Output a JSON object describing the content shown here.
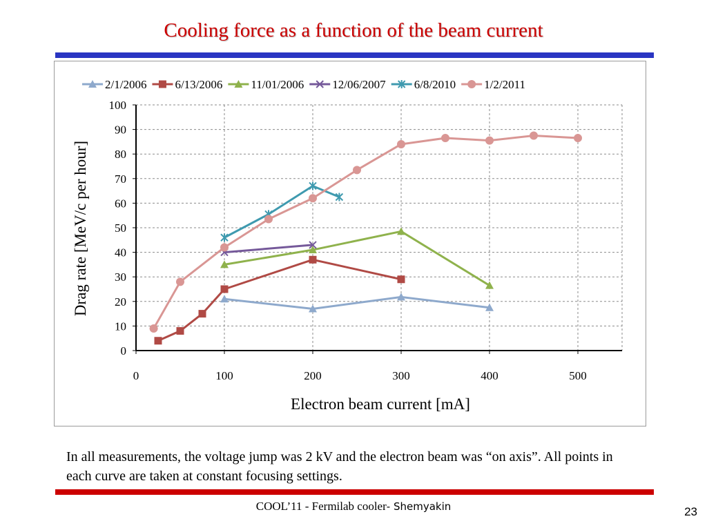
{
  "slide": {
    "title": "Cooling force as a function of the beam current",
    "note": "In all measurements, the voltage jump was 2 kV and the electron beam was “on axis”. All points in each curve are taken at constant focusing settings.",
    "footer_main": "COOL’11 - Fermilab cooler",
    "footer_author": "- Shemyakin",
    "page_number": "23"
  },
  "chart_data": {
    "type": "line",
    "title": "",
    "xlabel": "Electron beam current [mA]",
    "ylabel": "Drag rate [MeV/c per hour]",
    "xlim": [
      0,
      550
    ],
    "ylim": [
      0,
      100
    ],
    "xticks": [
      0,
      100,
      200,
      300,
      400,
      500
    ],
    "yticks": [
      0,
      10,
      20,
      30,
      40,
      50,
      60,
      70,
      80,
      90,
      100
    ],
    "grid": "dashed",
    "legend_position": "top",
    "series": [
      {
        "name": "2/1/2006",
        "color": "#8ea9cc",
        "marker": "triangle",
        "x": [
          100,
          200,
          300,
          400
        ],
        "y": [
          21,
          17,
          21.8,
          17.5
        ]
      },
      {
        "name": "6/13/2006",
        "color": "#b04a45",
        "marker": "square",
        "x": [
          25,
          50,
          75,
          100,
          200,
          300
        ],
        "y": [
          4,
          8,
          15,
          25,
          37,
          29
        ]
      },
      {
        "name": "11/01/2006",
        "color": "#8fb24c",
        "marker": "triangle",
        "x": [
          100,
          200,
          300,
          400
        ],
        "y": [
          35,
          41,
          48.5,
          26.5
        ]
      },
      {
        "name": "12/06/2007",
        "color": "#75599a",
        "marker": "x",
        "x": [
          100,
          200
        ],
        "y": [
          40,
          43
        ]
      },
      {
        "name": "6/8/2010",
        "color": "#3f9aaf",
        "marker": "star",
        "x": [
          100,
          150,
          200,
          230
        ],
        "y": [
          46,
          55.5,
          67,
          62.5
        ]
      },
      {
        "name": "1/2/2011",
        "color": "#d99694",
        "marker": "circle",
        "x": [
          20,
          50,
          100,
          150,
          200,
          250,
          300,
          350,
          400,
          450,
          500
        ],
        "y": [
          9,
          28,
          42,
          53.5,
          62,
          73.5,
          84,
          86.5,
          85.5,
          87.5,
          86.5
        ]
      }
    ]
  }
}
